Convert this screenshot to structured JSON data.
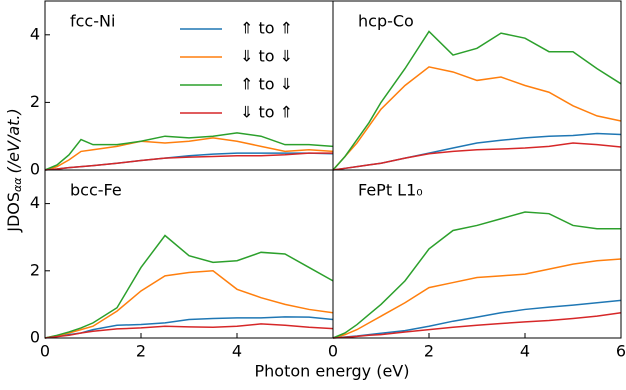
{
  "xlabel": "Photon energy (eV)",
  "ylabel": {
    "main": "JDOS",
    "sub": "αα",
    "unit": "(/eV/at.)"
  },
  "chart_data": [
    {
      "type": "line",
      "title": "fcc-Ni",
      "x": [
        0,
        0.25,
        0.5,
        0.75,
        1,
        1.5,
        2,
        2.5,
        3,
        3.5,
        4,
        4.5,
        5,
        5.5,
        6
      ],
      "xlim": [
        0,
        6
      ],
      "ylim": [
        0,
        5
      ],
      "yticks": [
        0,
        2,
        4
      ],
      "series": [
        {
          "name": "⇑ to ⇑",
          "color": "#1f77b4",
          "values": [
            0,
            0.03,
            0.07,
            0.1,
            0.13,
            0.2,
            0.28,
            0.35,
            0.42,
            0.47,
            0.5,
            0.5,
            0.5,
            0.5,
            0.48
          ]
        },
        {
          "name": "⇓ to ⇓",
          "color": "#ff7f0e",
          "values": [
            0,
            0.1,
            0.3,
            0.55,
            0.6,
            0.7,
            0.85,
            0.8,
            0.85,
            0.95,
            0.85,
            0.7,
            0.55,
            0.6,
            0.55
          ]
        },
        {
          "name": "⇑ to ⇓",
          "color": "#2ca02c",
          "values": [
            0,
            0.15,
            0.45,
            0.9,
            0.75,
            0.75,
            0.85,
            1.0,
            0.95,
            1.0,
            1.1,
            1.0,
            0.75,
            0.75,
            0.7
          ]
        },
        {
          "name": "⇓ to ⇑",
          "color": "#d62728",
          "values": [
            0,
            0.03,
            0.07,
            0.1,
            0.13,
            0.2,
            0.28,
            0.35,
            0.38,
            0.4,
            0.42,
            0.42,
            0.45,
            0.5,
            0.5
          ]
        }
      ]
    },
    {
      "type": "line",
      "title": "hcp-Co",
      "x": [
        0,
        0.25,
        0.5,
        0.75,
        1,
        1.5,
        2,
        2.5,
        3,
        3.5,
        4,
        4.5,
        5,
        5.5,
        6
      ],
      "xlim": [
        0,
        6
      ],
      "ylim": [
        0,
        5
      ],
      "series": [
        {
          "color": "#1f77b4",
          "values": [
            0,
            0.05,
            0.1,
            0.15,
            0.2,
            0.35,
            0.5,
            0.65,
            0.8,
            0.88,
            0.95,
            1.0,
            1.02,
            1.08,
            1.05
          ]
        },
        {
          "color": "#ff7f0e",
          "values": [
            0,
            0.4,
            0.8,
            1.3,
            1.8,
            2.5,
            3.05,
            2.9,
            2.65,
            2.75,
            2.5,
            2.3,
            1.9,
            1.6,
            1.45
          ]
        },
        {
          "color": "#2ca02c",
          "values": [
            0,
            0.4,
            0.9,
            1.4,
            2.0,
            3.0,
            4.1,
            3.4,
            3.6,
            4.05,
            3.9,
            3.5,
            3.5,
            3.0,
            2.55
          ]
        },
        {
          "color": "#d62728",
          "values": [
            0,
            0.05,
            0.1,
            0.15,
            0.2,
            0.35,
            0.48,
            0.55,
            0.6,
            0.62,
            0.65,
            0.7,
            0.8,
            0.75,
            0.68
          ]
        }
      ]
    },
    {
      "type": "line",
      "title": "bcc-Fe",
      "x": [
        0,
        0.25,
        0.5,
        0.75,
        1,
        1.5,
        2,
        2.5,
        3,
        3.5,
        4,
        4.5,
        5,
        5.5,
        6
      ],
      "xlim": [
        0,
        6
      ],
      "ylim": [
        0,
        5
      ],
      "xticks": [
        0,
        2,
        4
      ],
      "yticks": [
        0,
        2,
        4
      ],
      "series": [
        {
          "color": "#1f77b4",
          "values": [
            0,
            0.05,
            0.1,
            0.15,
            0.25,
            0.38,
            0.4,
            0.45,
            0.55,
            0.58,
            0.6,
            0.6,
            0.63,
            0.62,
            0.55
          ]
        },
        {
          "color": "#ff7f0e",
          "values": [
            0,
            0.07,
            0.15,
            0.25,
            0.35,
            0.8,
            1.4,
            1.85,
            1.95,
            2.0,
            1.45,
            1.2,
            1.0,
            0.85,
            0.75
          ]
        },
        {
          "color": "#2ca02c",
          "values": [
            0,
            0.08,
            0.18,
            0.3,
            0.45,
            0.9,
            2.1,
            3.05,
            2.45,
            2.25,
            2.3,
            2.55,
            2.5,
            2.1,
            1.7
          ]
        },
        {
          "color": "#d62728",
          "values": [
            0,
            0.04,
            0.08,
            0.15,
            0.2,
            0.27,
            0.3,
            0.35,
            0.33,
            0.32,
            0.35,
            0.42,
            0.38,
            0.32,
            0.28
          ]
        }
      ]
    },
    {
      "type": "line",
      "title": "FePt L1₀",
      "x": [
        0,
        0.25,
        0.5,
        0.75,
        1,
        1.5,
        2,
        2.5,
        3,
        3.5,
        4,
        4.5,
        5,
        5.5,
        6
      ],
      "xlim": [
        0,
        6
      ],
      "ylim": [
        0,
        5
      ],
      "xticks": [
        0,
        2,
        4,
        6
      ],
      "series": [
        {
          "color": "#1f77b4",
          "values": [
            0,
            0.03,
            0.06,
            0.1,
            0.14,
            0.22,
            0.35,
            0.5,
            0.62,
            0.75,
            0.85,
            0.92,
            0.98,
            1.05,
            1.12
          ]
        },
        {
          "color": "#ff7f0e",
          "values": [
            0,
            0.1,
            0.25,
            0.45,
            0.65,
            1.05,
            1.5,
            1.65,
            1.8,
            1.85,
            1.9,
            2.05,
            2.2,
            2.3,
            2.35
          ]
        },
        {
          "color": "#2ca02c",
          "values": [
            0,
            0.15,
            0.4,
            0.7,
            1.0,
            1.7,
            2.65,
            3.2,
            3.35,
            3.55,
            3.75,
            3.7,
            3.35,
            3.25,
            3.25
          ]
        },
        {
          "color": "#d62728",
          "values": [
            0,
            0.02,
            0.05,
            0.08,
            0.1,
            0.18,
            0.25,
            0.32,
            0.38,
            0.43,
            0.48,
            0.52,
            0.58,
            0.65,
            0.75
          ]
        }
      ]
    }
  ]
}
